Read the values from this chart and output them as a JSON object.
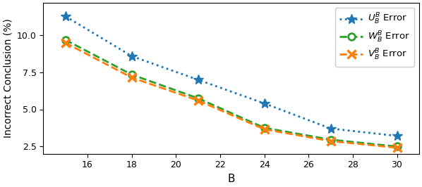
{
  "B": [
    15,
    18,
    21,
    24,
    27,
    30
  ],
  "U_B": [
    11.3,
    8.6,
    7.0,
    5.4,
    3.7,
    3.2
  ],
  "W_B": [
    9.7,
    7.35,
    5.75,
    3.75,
    2.95,
    2.48
  ],
  "V_B": [
    9.5,
    7.15,
    5.6,
    3.65,
    2.85,
    2.4
  ],
  "U_color": "#1f77b4",
  "W_color": "#2ca02c",
  "V_color": "#ff7f0e",
  "xlabel": "B",
  "ylabel": "Incorrect Conclusion (%)",
  "legend_U": "$U_B^B$ Error",
  "legend_W": "$W_B^B$ Error",
  "legend_V": "$V_B^B$ Error",
  "ylim": [
    2.0,
    12.2
  ],
  "xlim": [
    14.0,
    31.0
  ],
  "xticks": [
    16,
    18,
    20,
    22,
    24,
    26,
    28,
    30
  ],
  "yticks": [
    2.5,
    5.0,
    7.5,
    10.0
  ]
}
